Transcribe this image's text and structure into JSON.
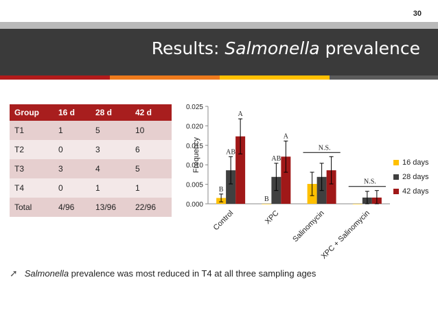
{
  "page_number": "30",
  "title": {
    "italic_part": "Salmonella",
    "before": "Results: ",
    "after": " prevalence"
  },
  "accent_colors": [
    "#b31b1b",
    "#ee7a1c",
    "#ffc000",
    "#5b5b5b"
  ],
  "table": {
    "headers": [
      "Group",
      "16 d",
      "28 d",
      "42 d"
    ],
    "rows": [
      [
        "T1",
        "1",
        "5",
        "10"
      ],
      [
        "T2",
        "0",
        "3",
        "6"
      ],
      [
        "T3",
        "3",
        "4",
        "5"
      ],
      [
        "T4",
        "0",
        "1",
        "1"
      ],
      [
        "Total",
        "4/96",
        "13/96",
        "22/96"
      ]
    ]
  },
  "chart_data": {
    "type": "bar",
    "ylabel": "Frequency",
    "ylim": [
      0,
      0.025
    ],
    "yticks": [
      "0.000",
      "0.005",
      "0.010",
      "0.015",
      "0.020",
      "0.025"
    ],
    "categories": [
      "Control",
      "XPC",
      "Salinomycin",
      "XPC + Salinomycin"
    ],
    "series": [
      {
        "name": "16 days",
        "color": "#ffc000",
        "values": [
          0.0015,
          0.0,
          0.0051,
          0.0
        ],
        "errors": [
          0.001,
          0.0,
          0.003,
          0.0
        ]
      },
      {
        "name": "28 days",
        "color": "#404040",
        "values": [
          0.0086,
          0.0069,
          0.0069,
          0.0016
        ],
        "errors": [
          0.0035,
          0.0035,
          0.0035,
          0.0016
        ]
      },
      {
        "name": "42 days",
        "color": "#a01818",
        "values": [
          0.0173,
          0.0121,
          0.0086,
          0.0016
        ],
        "errors": [
          0.0045,
          0.004,
          0.0035,
          0.0018
        ]
      }
    ],
    "annotations": [
      {
        "category": 0,
        "series": 2,
        "text": "A"
      },
      {
        "category": 0,
        "series": 1,
        "text": "AB"
      },
      {
        "category": 0,
        "series": 0,
        "text": "B"
      },
      {
        "category": 1,
        "series": 2,
        "text": "A"
      },
      {
        "category": 1,
        "series": 1,
        "text": "AB"
      },
      {
        "category": 1,
        "series": 0,
        "text": "B"
      },
      {
        "category": 2,
        "text": "N.S."
      },
      {
        "category": 3,
        "text": "N.S."
      }
    ]
  },
  "bullet": {
    "italic": "Salmonella",
    "text": " prevalence was most reduced in T4 at all three sampling ages"
  }
}
